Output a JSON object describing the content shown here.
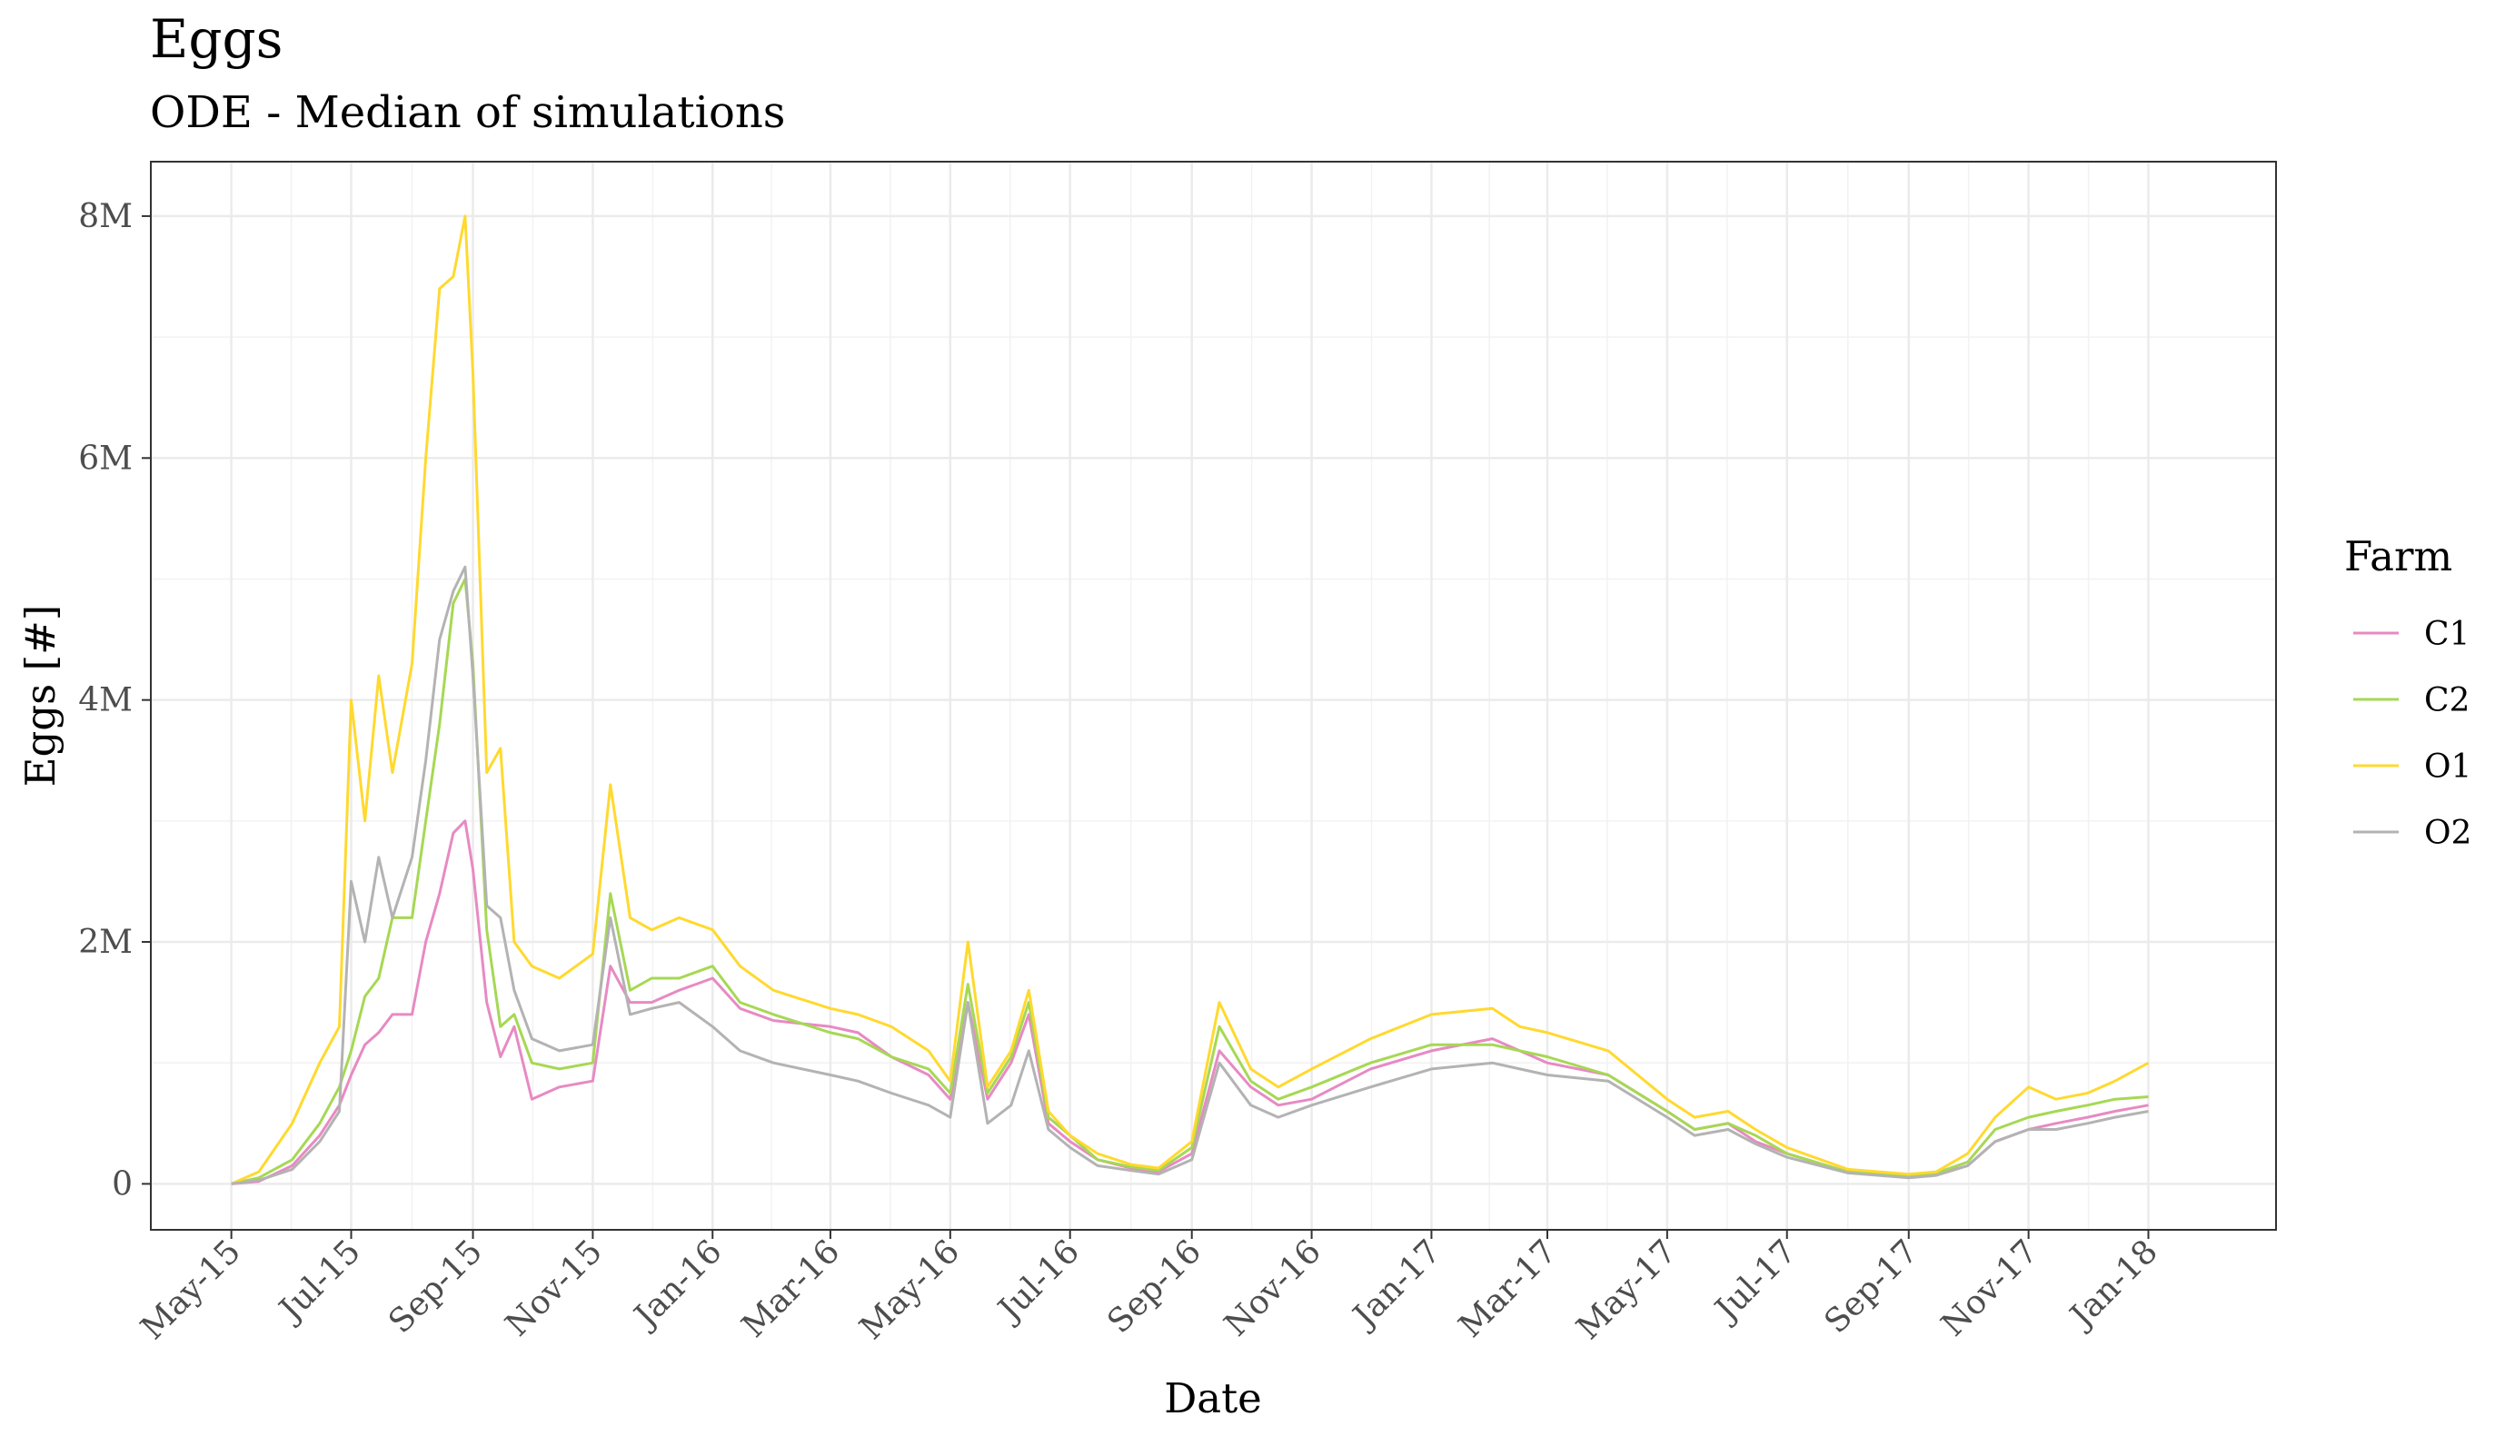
{
  "chart_data": {
    "type": "line",
    "title": "Eggs",
    "subtitle": "ODE - Median of simulations",
    "xlabel": "Date",
    "ylabel": "Eggs [#]",
    "x_tick_labels": [
      "May-15",
      "Jul-15",
      "Sep-15",
      "Nov-15",
      "Jan-16",
      "Mar-16",
      "May-16",
      "Jul-16",
      "Sep-16",
      "Nov-16",
      "Jan-17",
      "Mar-17",
      "May-17",
      "Jul-17",
      "Sep-17",
      "Nov-17",
      "Jan-18"
    ],
    "x_ticks": [
      "2015-05-01",
      "2015-07-01",
      "2015-09-01",
      "2015-11-01",
      "2016-01-01",
      "2016-03-01",
      "2016-05-01",
      "2016-07-01",
      "2016-09-01",
      "2016-11-01",
      "2017-01-01",
      "2017-03-01",
      "2017-05-01",
      "2017-07-01",
      "2017-09-01",
      "2017-11-01",
      "2018-01-01"
    ],
    "xlim": [
      "2015-03-21",
      "2018-03-07"
    ],
    "y_ticks": [
      0,
      2000000,
      4000000,
      6000000,
      8000000
    ],
    "y_tick_labels": [
      "0",
      "2M",
      "4M",
      "6M",
      "8M"
    ],
    "ylim": [
      -380000,
      8450000
    ],
    "grid": true,
    "legend": {
      "title": "Farm",
      "position": "right"
    },
    "x": [
      "2015-05-01",
      "2015-05-15",
      "2015-06-01",
      "2015-06-15",
      "2015-06-25",
      "2015-07-01",
      "2015-07-08",
      "2015-07-15",
      "2015-07-22",
      "2015-08-01",
      "2015-08-08",
      "2015-08-15",
      "2015-08-22",
      "2015-08-28",
      "2015-09-01",
      "2015-09-08",
      "2015-09-15",
      "2015-09-22",
      "2015-10-01",
      "2015-10-15",
      "2015-11-01",
      "2015-11-10",
      "2015-11-20",
      "2015-12-01",
      "2015-12-15",
      "2016-01-01",
      "2016-01-15",
      "2016-02-01",
      "2016-03-01",
      "2016-03-15",
      "2016-04-01",
      "2016-04-20",
      "2016-05-01",
      "2016-05-10",
      "2016-05-20",
      "2016-06-01",
      "2016-06-10",
      "2016-06-20",
      "2016-07-01",
      "2016-07-15",
      "2016-08-01",
      "2016-08-15",
      "2016-09-01",
      "2016-09-15",
      "2016-10-01",
      "2016-10-15",
      "2016-11-01",
      "2016-12-01",
      "2017-01-01",
      "2017-02-01",
      "2017-02-15",
      "2017-03-01",
      "2017-04-01",
      "2017-05-01",
      "2017-05-15",
      "2017-06-01",
      "2017-06-15",
      "2017-07-01",
      "2017-08-01",
      "2017-09-01",
      "2017-09-15",
      "2017-10-01",
      "2017-10-15",
      "2017-11-01",
      "2017-11-15",
      "2017-12-01",
      "2017-12-15",
      "2018-01-01"
    ],
    "series": [
      {
        "name": "C1",
        "color": "#e78ac3",
        "values": [
          0,
          20000,
          150000,
          400000,
          650000,
          900000,
          1150000,
          1250000,
          1400000,
          1400000,
          2000000,
          2400000,
          2900000,
          3000000,
          2600000,
          1500000,
          1050000,
          1300000,
          700000,
          800000,
          850000,
          1800000,
          1500000,
          1500000,
          1600000,
          1700000,
          1450000,
          1350000,
          1300000,
          1250000,
          1050000,
          900000,
          700000,
          1500000,
          700000,
          1000000,
          1400000,
          500000,
          350000,
          200000,
          130000,
          100000,
          250000,
          1100000,
          800000,
          650000,
          700000,
          950000,
          1100000,
          1200000,
          1100000,
          1000000,
          900000,
          600000,
          450000,
          500000,
          350000,
          250000,
          100000,
          60000,
          80000,
          150000,
          350000,
          450000,
          500000,
          550000,
          600000,
          650000
        ]
      },
      {
        "name": "C2",
        "color": "#a6d854",
        "values": [
          0,
          50000,
          200000,
          500000,
          800000,
          1100000,
          1550000,
          1700000,
          2200000,
          2200000,
          3000000,
          3800000,
          4800000,
          5000000,
          4300000,
          2100000,
          1300000,
          1400000,
          1000000,
          950000,
          1000000,
          2400000,
          1600000,
          1700000,
          1700000,
          1800000,
          1500000,
          1400000,
          1250000,
          1200000,
          1050000,
          950000,
          750000,
          1650000,
          750000,
          1050000,
          1500000,
          550000,
          400000,
          200000,
          140000,
          110000,
          300000,
          1300000,
          850000,
          700000,
          800000,
          1000000,
          1150000,
          1150000,
          1100000,
          1050000,
          900000,
          600000,
          450000,
          500000,
          400000,
          250000,
          100000,
          60000,
          90000,
          180000,
          450000,
          550000,
          600000,
          650000,
          700000,
          720000
        ]
      },
      {
        "name": "O1",
        "color": "#ffd92f",
        "values": [
          0,
          100000,
          500000,
          1000000,
          1300000,
          4000000,
          3000000,
          4200000,
          3400000,
          4300000,
          6000000,
          7400000,
          7500000,
          8000000,
          6700000,
          3400000,
          3600000,
          2000000,
          1800000,
          1700000,
          1900000,
          3300000,
          2200000,
          2100000,
          2200000,
          2100000,
          1800000,
          1600000,
          1450000,
          1400000,
          1300000,
          1100000,
          850000,
          2000000,
          800000,
          1100000,
          1600000,
          600000,
          400000,
          250000,
          160000,
          130000,
          350000,
          1500000,
          950000,
          800000,
          950000,
          1200000,
          1400000,
          1450000,
          1300000,
          1250000,
          1100000,
          700000,
          550000,
          600000,
          450000,
          300000,
          120000,
          80000,
          100000,
          250000,
          550000,
          800000,
          700000,
          750000,
          850000,
          1000000
        ]
      },
      {
        "name": "O2",
        "color": "#b3b3b3",
        "values": [
          0,
          30000,
          120000,
          350000,
          600000,
          2500000,
          2000000,
          2700000,
          2200000,
          2700000,
          3500000,
          4500000,
          4900000,
          5100000,
          4200000,
          2300000,
          2200000,
          1600000,
          1200000,
          1100000,
          1150000,
          2200000,
          1400000,
          1450000,
          1500000,
          1300000,
          1100000,
          1000000,
          900000,
          850000,
          750000,
          650000,
          550000,
          1500000,
          500000,
          650000,
          1100000,
          450000,
          300000,
          150000,
          110000,
          80000,
          200000,
          1000000,
          650000,
          550000,
          650000,
          800000,
          950000,
          1000000,
          950000,
          900000,
          850000,
          550000,
          400000,
          450000,
          330000,
          220000,
          90000,
          50000,
          70000,
          150000,
          350000,
          450000,
          450000,
          500000,
          550000,
          600000
        ]
      }
    ]
  }
}
